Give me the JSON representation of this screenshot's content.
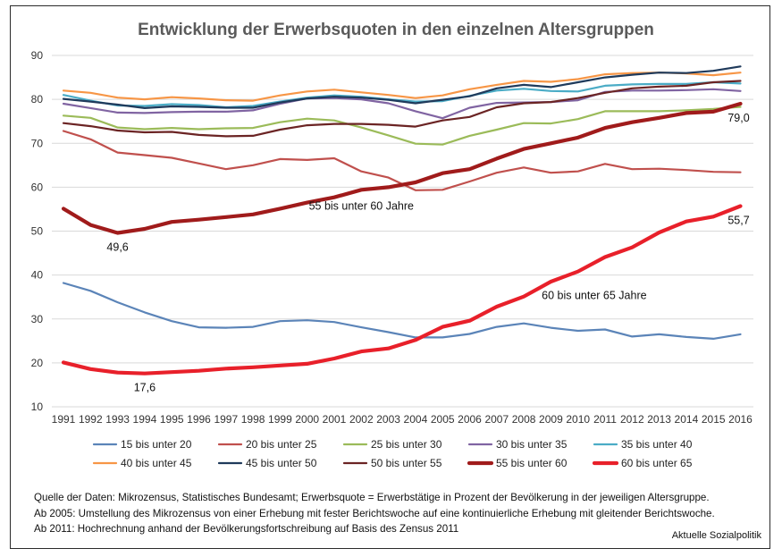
{
  "chart_data": {
    "type": "line",
    "title": "Entwicklung der Erwerbsquoten in den einzelnen Altersgruppen",
    "x": [
      1991,
      1992,
      1993,
      1994,
      1995,
      1996,
      1997,
      1998,
      1999,
      2000,
      2001,
      2002,
      2003,
      2004,
      2005,
      2006,
      2007,
      2008,
      2009,
      2010,
      2011,
      2012,
      2013,
      2014,
      2015,
      2016
    ],
    "x_tick_labels": [
      "1991",
      "1992",
      "1993",
      "1994",
      "1995",
      "1996",
      "1997",
      "1998",
      "1999",
      "2000",
      "2001",
      "2002",
      "2003",
      "2004",
      "2005",
      "2006",
      "2007",
      "2008",
      "2009",
      "2010",
      "2011",
      "2012",
      "2013",
      "2014",
      "2015",
      "2016"
    ],
    "ylim": [
      10,
      90
    ],
    "y_ticks": [
      10,
      20,
      30,
      40,
      50,
      60,
      70,
      80,
      90
    ],
    "y_tick_labels": [
      "10",
      "20",
      "30",
      "40",
      "50",
      "60",
      "70",
      "80",
      "90"
    ],
    "grid": true,
    "legend_position": "bottom",
    "series": [
      {
        "name": "15 bis unter 20",
        "color": "#5b84b8",
        "bold": false,
        "values": [
          38.2,
          36.4,
          33.8,
          31.5,
          29.5,
          28.1,
          28.0,
          28.2,
          29.5,
          29.7,
          29.3,
          28.1,
          27.0,
          25.8,
          25.8,
          26.6,
          28.2,
          29.0,
          28.0,
          27.3,
          27.6,
          26.0,
          26.5,
          25.9,
          25.5,
          26.5
        ]
      },
      {
        "name": "20 bis unter 25",
        "color": "#c0504d",
        "bold": false,
        "values": [
          72.8,
          70.9,
          67.9,
          67.3,
          66.7,
          65.4,
          64.1,
          65.0,
          66.4,
          66.2,
          66.6,
          63.6,
          62.2,
          59.3,
          59.4,
          61.3,
          63.3,
          64.5,
          63.3,
          63.6,
          65.3,
          64.1,
          64.2,
          63.9,
          63.5,
          63.4
        ]
      },
      {
        "name": "25 bis unter 30",
        "color": "#9bbb59",
        "bold": false,
        "values": [
          76.3,
          75.8,
          73.6,
          73.2,
          73.5,
          73.2,
          73.4,
          73.5,
          74.8,
          75.6,
          75.2,
          73.6,
          71.8,
          69.9,
          69.7,
          71.7,
          73.1,
          74.6,
          74.5,
          75.5,
          77.3,
          77.3,
          77.3,
          77.5,
          77.8,
          78.3
        ]
      },
      {
        "name": "30 bis unter 35",
        "color": "#8064a2",
        "bold": false,
        "values": [
          79.0,
          78.0,
          77.0,
          76.9,
          77.1,
          77.2,
          77.2,
          77.5,
          79.0,
          80.2,
          80.3,
          80.0,
          79.1,
          77.3,
          75.7,
          78.1,
          79.2,
          79.3,
          79.4,
          79.8,
          81.7,
          82.0,
          82.0,
          82.1,
          82.3,
          81.9
        ]
      },
      {
        "name": "35 bis unter 40",
        "color": "#4bacc6",
        "bold": false,
        "values": [
          81.0,
          79.7,
          78.6,
          78.5,
          78.9,
          78.7,
          78.2,
          78.5,
          79.5,
          80.4,
          80.9,
          80.6,
          80.0,
          79.5,
          79.6,
          80.8,
          82.0,
          82.4,
          81.9,
          81.8,
          83.1,
          83.4,
          83.5,
          83.5,
          83.9,
          83.6
        ]
      },
      {
        "name": "40 bis unter 45",
        "color": "#f79646",
        "bold": false,
        "values": [
          82.0,
          81.5,
          80.4,
          80.0,
          80.5,
          80.2,
          79.8,
          79.7,
          80.9,
          81.8,
          82.2,
          81.6,
          81.0,
          80.3,
          80.9,
          82.3,
          83.3,
          84.2,
          84.0,
          84.6,
          85.7,
          86.0,
          86.1,
          85.9,
          85.5,
          86.1
        ]
      },
      {
        "name": "45 bis unter 50",
        "color": "#1f3a5b",
        "bold": false,
        "values": [
          80.1,
          79.5,
          78.8,
          78.0,
          78.4,
          78.3,
          78.1,
          78.1,
          79.3,
          80.2,
          80.6,
          80.4,
          79.9,
          79.1,
          79.9,
          80.7,
          82.5,
          83.3,
          82.8,
          83.9,
          85.0,
          85.6,
          86.1,
          86.0,
          86.5,
          87.5
        ]
      },
      {
        "name": "50 bis unter 55",
        "color": "#6b2424",
        "bold": false,
        "values": [
          74.6,
          73.9,
          72.9,
          72.5,
          72.6,
          71.9,
          71.6,
          71.7,
          73.1,
          74.1,
          74.4,
          74.4,
          74.2,
          73.8,
          75.2,
          76.0,
          78.2,
          79.1,
          79.4,
          80.3,
          81.5,
          82.5,
          82.9,
          83.1,
          83.9,
          84.2
        ]
      },
      {
        "name": "55 bis unter 60",
        "color": "#a01b1b",
        "bold": true,
        "values": [
          55.1,
          51.4,
          49.6,
          50.5,
          52.1,
          52.6,
          53.2,
          53.8,
          55.1,
          56.5,
          57.7,
          59.4,
          60.0,
          61.1,
          63.2,
          64.1,
          66.5,
          68.7,
          70.0,
          71.3,
          73.5,
          74.8,
          75.8,
          76.9,
          77.2,
          79.0
        ]
      },
      {
        "name": "60 bis unter 65",
        "color": "#e8202a",
        "bold": true,
        "values": [
          20.1,
          18.6,
          17.8,
          17.6,
          17.9,
          18.2,
          18.7,
          19.0,
          19.4,
          19.8,
          21.0,
          22.6,
          23.3,
          25.2,
          28.2,
          29.6,
          32.8,
          35.1,
          38.5,
          40.8,
          44.1,
          46.3,
          49.7,
          52.2,
          53.3,
          55.7
        ]
      }
    ],
    "annotations": [
      {
        "text": "49,6",
        "x": 1993,
        "y": 49.6
      },
      {
        "text": "17,6",
        "x": 1994,
        "y": 17.6
      },
      {
        "text": "79,0",
        "x": 2016,
        "y": 79.0
      },
      {
        "text": "55,7",
        "x": 2016,
        "y": 55.7
      },
      {
        "text": "55 bis unter 60 Jahre",
        "x": 2002,
        "y": 55.7
      },
      {
        "text": "60 bis unter 65 Jahre",
        "x": 2010.6,
        "y": 35.3
      }
    ]
  },
  "notes": [
    "Quelle der Daten: Mikrozensus, Statistisches Bundesamt; Erwerbsquote = Erwerbstätige in Prozent der Bevölkerung in der jeweiligen Altersgruppe.",
    "Ab 2005: Umstellung des Mikrozensus von einer Erhebung mit fester Berichtswoche auf eine kontinuierliche Erhebung mit gleitender Berichtswoche.",
    "Ab 2011: Hochrechnung anhand der Bevölkerungsfortschreibung auf Basis des Zensus 2011"
  ],
  "credit": "Aktuelle Sozialpolitik"
}
